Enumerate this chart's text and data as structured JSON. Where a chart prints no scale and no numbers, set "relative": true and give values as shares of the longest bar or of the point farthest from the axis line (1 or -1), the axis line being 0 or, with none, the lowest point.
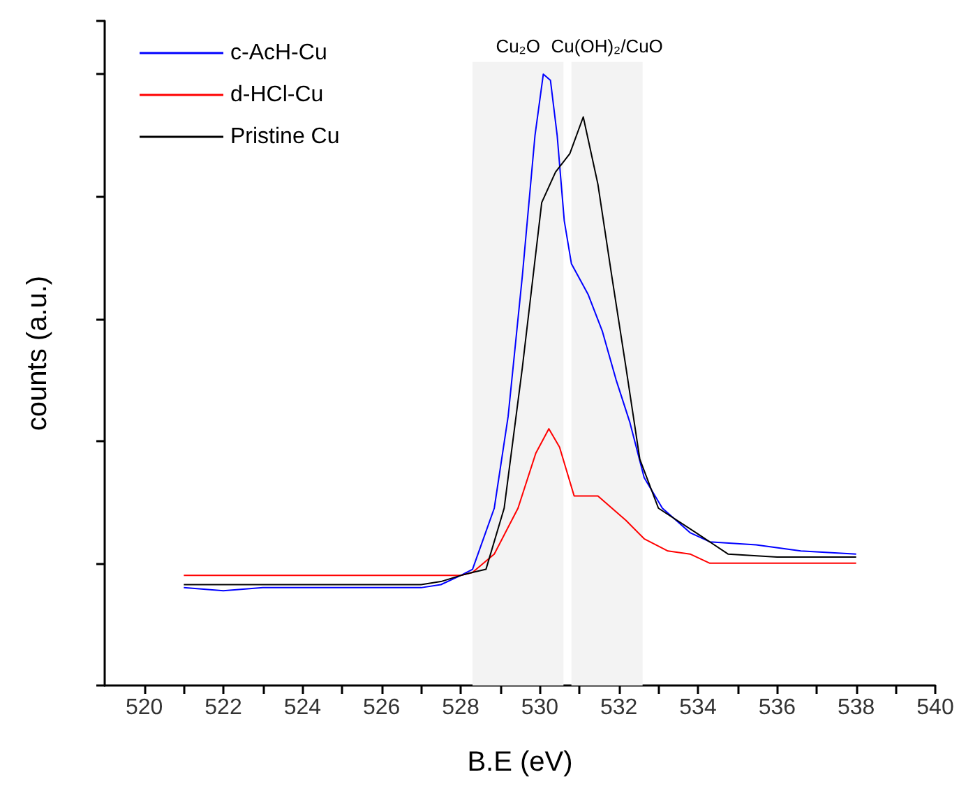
{
  "chart_data": {
    "type": "line",
    "relative": true,
    "xlabel": "B.E (eV)",
    "ylabel": "counts (a.u.)",
    "xlim": [
      519,
      540
    ],
    "xticks": [
      520,
      {
        "value": 521,
        "label": null
      },
      522,
      {
        "value": 523,
        "label": null
      },
      524,
      {
        "value": 525,
        "label": null
      },
      526,
      {
        "value": 527,
        "label": null
      },
      528,
      {
        "value": 529,
        "label": null
      },
      530,
      {
        "value": 531,
        "label": null
      },
      532,
      {
        "value": 533,
        "label": null
      },
      534,
      {
        "value": 535,
        "label": null
      },
      536,
      {
        "value": 537,
        "label": null
      },
      538,
      {
        "value": 539,
        "label": null
      },
      540
    ],
    "legend": "top left",
    "grid": false,
    "marker": "none",
    "line_style": "solid",
    "bands": [
      {
        "axis": "x",
        "from": 528.3,
        "to": 530.6,
        "label": "Cu₂O",
        "color": "#f3f3f3"
      },
      {
        "axis": "x",
        "from": 530.8,
        "to": 532.6,
        "label": "Cu(OH)₂/CuO",
        "color": "#f3f3f3"
      }
    ],
    "series": [
      {
        "name": "c-AcH-Cu",
        "color": "#0000ff",
        "x": [
          521,
          522,
          523,
          524,
          525,
          526,
          527,
          527.5,
          528,
          528.3,
          528.85,
          529.2,
          529.56,
          529.88,
          530.09,
          530.27,
          530.44,
          530.62,
          530.8,
          531.22,
          531.58,
          531.93,
          532.28,
          532.64,
          533.1,
          533.8,
          534.3,
          535.47,
          536.6,
          538
        ],
        "values": [
          0.16,
          0.155,
          0.16,
          0.16,
          0.16,
          0.16,
          0.16,
          0.165,
          0.18,
          0.19,
          0.29,
          0.44,
          0.67,
          0.9,
          1.0,
          0.99,
          0.9,
          0.76,
          0.69,
          0.64,
          0.58,
          0.5,
          0.43,
          0.34,
          0.29,
          0.25,
          0.235,
          0.23,
          0.22,
          0.215
        ]
      },
      {
        "name": "d-HCl-Cu",
        "color": "#ff0000",
        "x": [
          521,
          522,
          523,
          524,
          525,
          526,
          527,
          527.5,
          528,
          528.3,
          528.85,
          529.45,
          529.9,
          530.23,
          530.5,
          530.87,
          531.47,
          532.18,
          532.64,
          533.24,
          533.8,
          534.3,
          535.5,
          536.6,
          538
        ],
        "values": [
          0.18,
          0.18,
          0.18,
          0.18,
          0.18,
          0.18,
          0.18,
          0.18,
          0.18,
          0.185,
          0.215,
          0.29,
          0.38,
          0.42,
          0.39,
          0.31,
          0.31,
          0.27,
          0.24,
          0.22,
          0.215,
          0.2,
          0.2,
          0.2,
          0.2
        ]
      },
      {
        "name": "Pristine Cu",
        "color": "#000000",
        "x": [
          521,
          522,
          523,
          524,
          525,
          526,
          527,
          527.5,
          528,
          528.3,
          528.64,
          529.1,
          529.56,
          530.05,
          530.4,
          530.76,
          531.1,
          531.47,
          531.82,
          532.18,
          532.53,
          533.0,
          533.95,
          534.76,
          536,
          538
        ],
        "values": [
          0.165,
          0.165,
          0.165,
          0.165,
          0.165,
          0.165,
          0.165,
          0.17,
          0.18,
          0.185,
          0.19,
          0.29,
          0.52,
          0.79,
          0.84,
          0.87,
          0.93,
          0.82,
          0.67,
          0.52,
          0.37,
          0.29,
          0.25,
          0.215,
          0.21,
          0.21
        ]
      }
    ]
  }
}
